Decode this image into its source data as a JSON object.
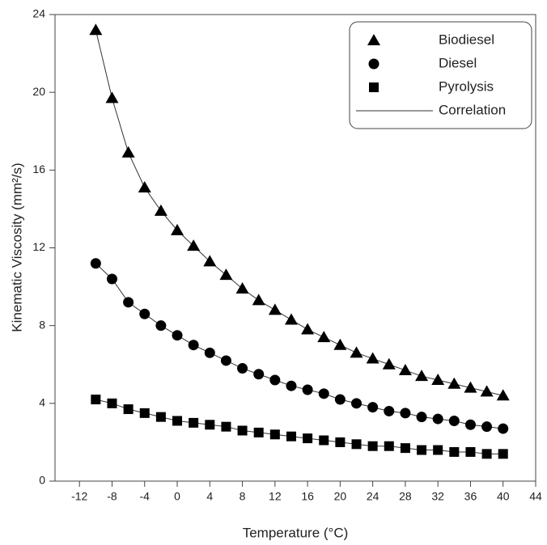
{
  "chart_data": {
    "type": "scatter",
    "x_label": "Temperature (°C)",
    "y_label": "Kinematic Viscosity (mm²/s)",
    "x": [
      -10,
      -8,
      -6,
      -4,
      -2,
      0,
      2,
      4,
      6,
      8,
      10,
      12,
      14,
      16,
      18,
      20,
      22,
      24,
      26,
      28,
      30,
      32,
      34,
      36,
      38,
      40
    ],
    "series": [
      {
        "name": "Biodiesel",
        "color": "#000000",
        "marker": "triangle",
        "values": [
          23.2,
          19.7,
          16.9,
          15.1,
          13.9,
          12.9,
          12.1,
          11.3,
          10.6,
          9.9,
          9.3,
          8.8,
          8.3,
          7.8,
          7.4,
          7.0,
          6.6,
          6.3,
          6.0,
          5.7,
          5.4,
          5.2,
          5.0,
          4.8,
          4.6,
          4.4
        ]
      },
      {
        "name": "Diesel",
        "color": "#000000",
        "marker": "circle",
        "values": [
          11.2,
          10.4,
          9.2,
          8.6,
          8.0,
          7.5,
          7.0,
          6.6,
          6.2,
          5.8,
          5.5,
          5.2,
          4.9,
          4.7,
          4.5,
          4.2,
          4.0,
          3.8,
          3.6,
          3.5,
          3.3,
          3.2,
          3.1,
          2.9,
          2.8,
          2.7
        ]
      },
      {
        "name": "Pyrolysis",
        "color": "#000000",
        "marker": "square",
        "values": [
          4.2,
          4.0,
          3.7,
          3.5,
          3.3,
          3.1,
          3.0,
          2.9,
          2.8,
          2.6,
          2.5,
          2.4,
          2.3,
          2.2,
          2.1,
          2.0,
          1.9,
          1.8,
          1.8,
          1.7,
          1.6,
          1.6,
          1.5,
          1.5,
          1.4,
          1.4
        ]
      }
    ],
    "line_name": "Correlation",
    "line_color": "#333333",
    "xlim": [
      -15,
      44
    ],
    "ylim": [
      0,
      24
    ],
    "xticks": [
      -12,
      -8,
      -4,
      0,
      4,
      8,
      12,
      16,
      20,
      24,
      28,
      32,
      36,
      40,
      44
    ],
    "yticks": [
      0,
      4,
      8,
      12,
      16,
      20,
      24
    ],
    "legend": "upper right"
  }
}
